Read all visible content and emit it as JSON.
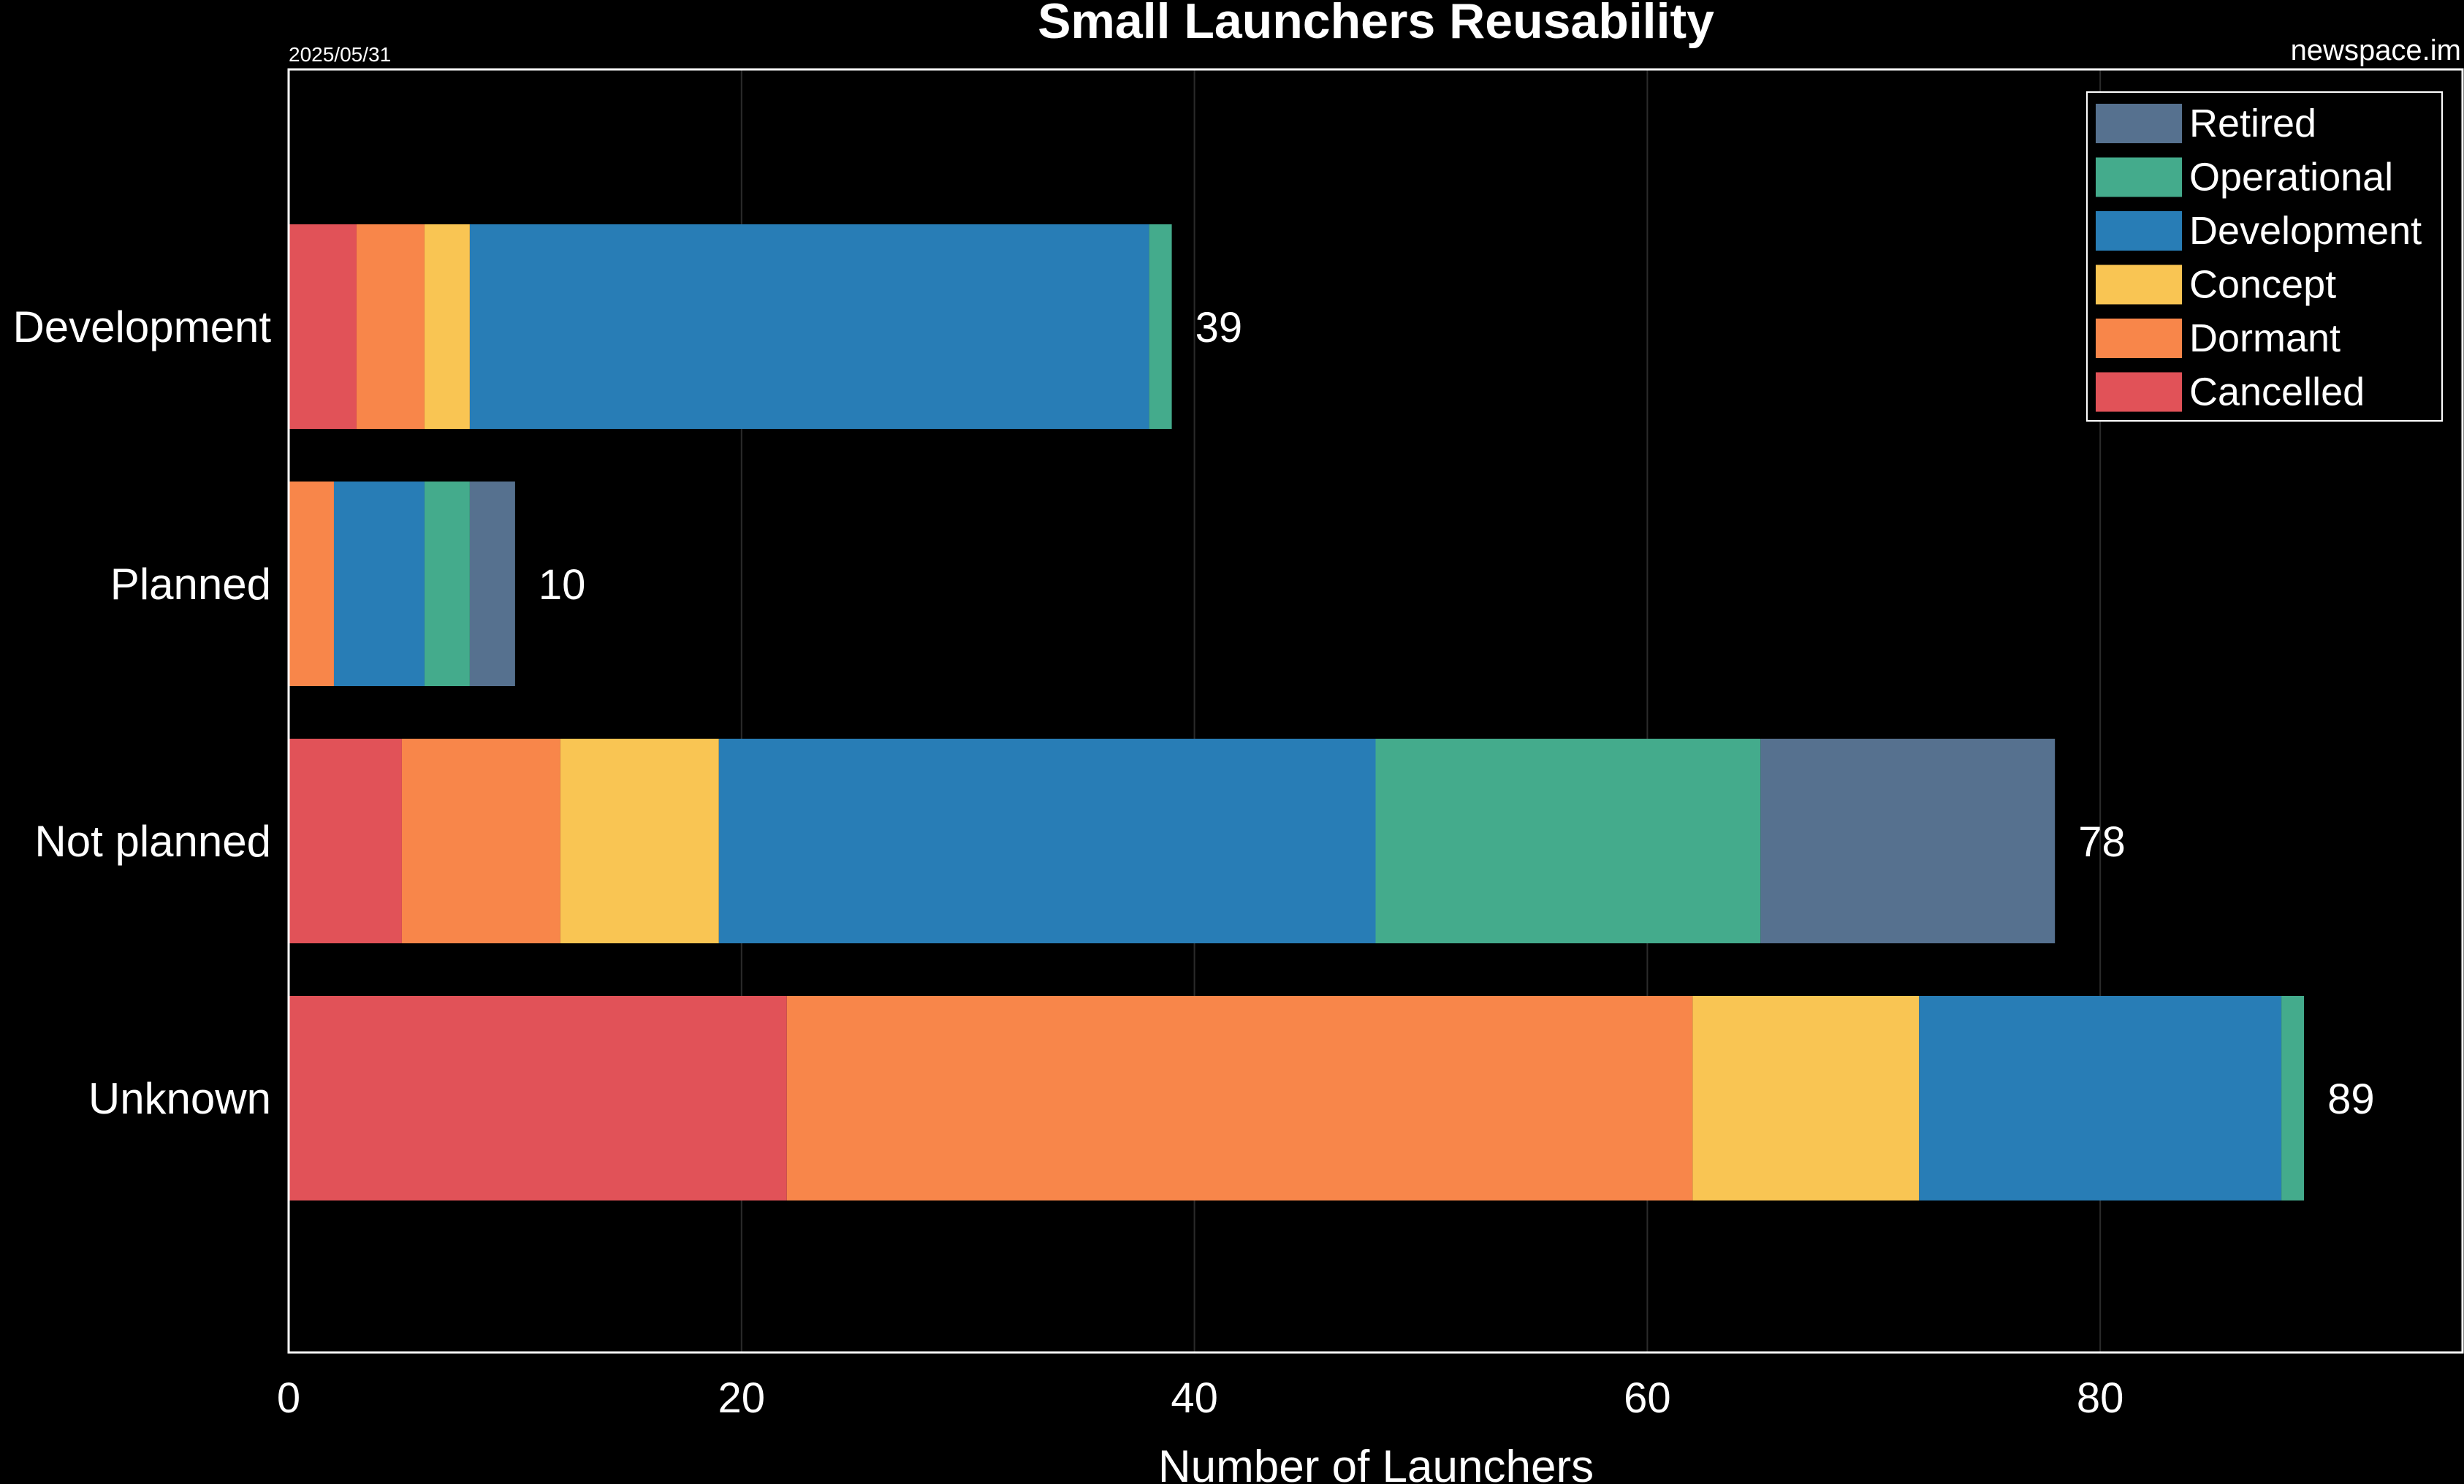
{
  "chart_data": {
    "type": "bar",
    "orientation": "horizontal",
    "stacked": true,
    "title": "Small Launchers Reusability",
    "date": "2025/05/31",
    "source": "newspace.im",
    "xlabel": "Number of Launchers",
    "ylabel": "",
    "xlim": [
      0,
      96
    ],
    "xticks": [
      0,
      20,
      40,
      60,
      80
    ],
    "grid": "vertical",
    "legend_position": "top-right",
    "categories": [
      "Development",
      "Planned",
      "Not planned",
      "Unknown"
    ],
    "totals": [
      39,
      10,
      78,
      89
    ],
    "series": [
      {
        "name": "Cancelled",
        "color": "#e15258",
        "values": [
          3,
          0,
          5,
          22
        ]
      },
      {
        "name": "Dormant",
        "color": "#f8864a",
        "values": [
          3,
          2,
          7,
          40
        ]
      },
      {
        "name": "Concept",
        "color": "#f9c553",
        "values": [
          2,
          0,
          7,
          10
        ]
      },
      {
        "name": "Development",
        "color": "#287db6",
        "values": [
          30,
          4,
          29,
          16
        ]
      },
      {
        "name": "Operational",
        "color": "#44ab8c",
        "values": [
          1,
          2,
          17,
          1
        ]
      },
      {
        "name": "Retired",
        "color": "#56718f",
        "values": [
          0,
          2,
          13,
          0
        ]
      }
    ],
    "legend_order": [
      "Retired",
      "Operational",
      "Development",
      "Concept",
      "Dormant",
      "Cancelled"
    ]
  },
  "colors": {
    "background": "#000000",
    "frame": "#ffffff",
    "grid": "#2b2b2b",
    "text": "#ffffff"
  }
}
